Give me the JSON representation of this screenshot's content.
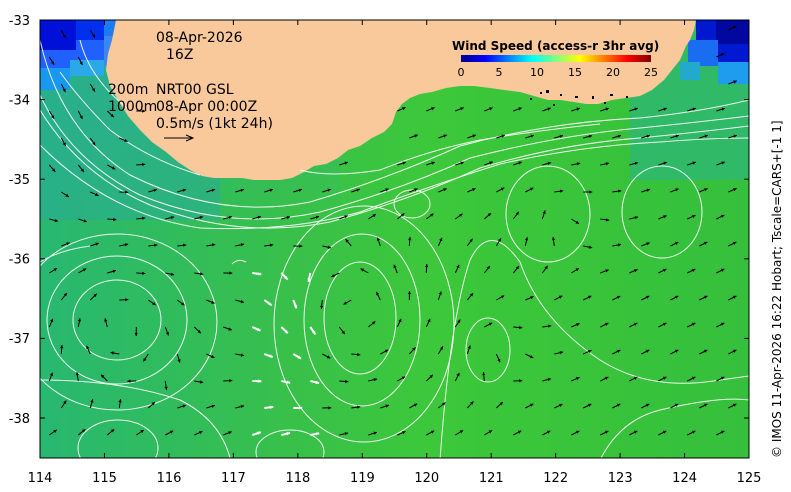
{
  "map": {
    "lon_ticks": [
      "114",
      "115",
      "116",
      "117",
      "118",
      "119",
      "120",
      "121",
      "122",
      "123",
      "124",
      "125"
    ],
    "lat_ticks": [
      "-33",
      "-34",
      "-35",
      "-36",
      "-37",
      "-38"
    ],
    "lon_range": [
      114,
      125
    ],
    "lat_range": [
      -38.5,
      -33
    ],
    "land_color": "#f9c89b",
    "sea_color": "#3cc63c"
  },
  "annotations": {
    "date": "08-Apr-2026",
    "hour": "16Z",
    "depth1": "200m",
    "depth2": "1000m",
    "source": "NRT00 GSL",
    "analysis_time": "08-Apr 00:00Z",
    "scale_label": "0.5m/s (1kt 24h)"
  },
  "colorbar": {
    "title": "Wind Speed (access-r 3hr avg)",
    "ticks": [
      "0",
      "5",
      "10",
      "15",
      "20",
      "25"
    ],
    "colors": [
      "#00008f",
      "#0000ff",
      "#0080ff",
      "#00ffff",
      "#80ff80",
      "#ffff00",
      "#ff8000",
      "#ff0000",
      "#800000"
    ]
  },
  "credit": "© IMOS 11-Apr-2026 16:22 Hobart; Tscale=CARS+[-1 1]"
}
